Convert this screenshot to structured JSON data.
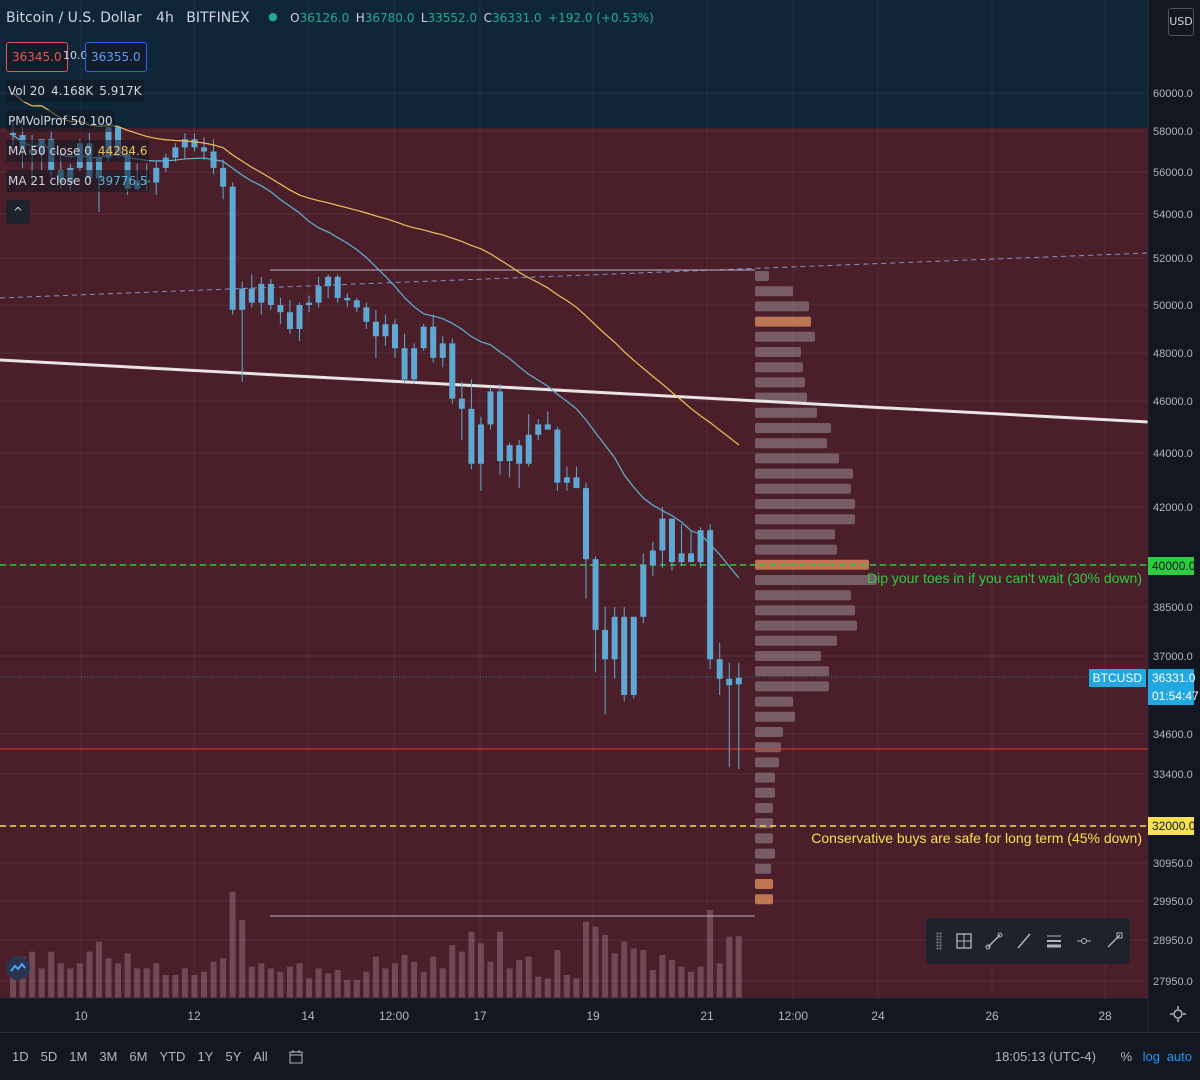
{
  "header": {
    "title": "Bitcoin / U.S. Dollar",
    "interval": "4h",
    "exchange": "BITFINEX",
    "ohlc": [
      {
        "label": "O",
        "value": "36126.0"
      },
      {
        "label": "H",
        "value": "36780.0"
      },
      {
        "label": "L",
        "value": "33552.0"
      },
      {
        "label": "C",
        "value": "36331.0"
      }
    ],
    "change": "+192.0 (+0.53%)",
    "bid": "36345.0",
    "spread": "10.0",
    "ask": "36355.0"
  },
  "indicators": [
    {
      "name": "Vol 20",
      "v1": "4.168K",
      "v2": "5.917K",
      "color1": "#d1d4dc",
      "color2": "#d1d4dc"
    },
    {
      "name": "PMVolProf 50 100",
      "v1": "",
      "v2": "",
      "color1": "#d1d4dc",
      "color2": "#d1d4dc"
    },
    {
      "name": "MA 50 close 0",
      "v1": "44284.6",
      "v2": "",
      "color1": "#f0c05a",
      "color2": "#d1d4dc"
    },
    {
      "name": "MA 21 close 0",
      "v1": "39776.5",
      "v2": "",
      "color1": "#5fb3d3",
      "color2": "#d1d4dc"
    }
  ],
  "price_axis": {
    "currency": "USD",
    "ticks": [
      "60000.0",
      "58000.0",
      "56000.0",
      "54000.0",
      "52000.0",
      "50000.0",
      "48000.0",
      "46000.0",
      "44000.0",
      "42000.0",
      "40000.0",
      "38500.0",
      "37000.0",
      "34600.0",
      "33400.0",
      "32000.0",
      "30950.0",
      "29950.0",
      "28950.0",
      "27950.0"
    ],
    "marker_40000": "40000.0",
    "marker_32000": "32000.0",
    "last_symbol": "BTCUSD",
    "last_price": "36331.0",
    "countdown": "01:54:47"
  },
  "time_axis": {
    "ticks": [
      "10",
      "12",
      "14",
      "12:00",
      "17",
      "19",
      "21",
      "12:00",
      "24",
      "26",
      "28"
    ]
  },
  "annotations": {
    "green_note": "Dip your toes in if you can't wait (30% down)",
    "yellow_note": "Conservative buys are safe for long term (45% down)"
  },
  "bottom_bar": {
    "ranges": [
      "1D",
      "5D",
      "1M",
      "3M",
      "6M",
      "YTD",
      "1Y",
      "5Y",
      "All"
    ],
    "time": "18:05:13 (UTC-4)",
    "percent": "%",
    "log": "log",
    "auto": "auto"
  },
  "colors": {
    "up": "#26a69a",
    "candle": "#5fa8d3",
    "zone": "#4a1f2a",
    "zone_top": "#0f2638",
    "ma50": "#f0c05a",
    "ma21": "#5fb3d3",
    "green_line": "#2ecc40",
    "yellow_line": "#f5e050",
    "red_line": "#e53935",
    "vp": "#9e8e96",
    "vp_poc": "#d2855a"
  },
  "chart_data": {
    "type": "candlestick",
    "symbol": "BTCUSD",
    "interval": "4h",
    "candles_ohlc": [
      [
        57900,
        58600,
        57300,
        57800
      ],
      [
        57800,
        58200,
        56200,
        57100
      ],
      [
        57100,
        57800,
        55500,
        56900
      ],
      [
        56900,
        57400,
        56100,
        57600
      ],
      [
        57600,
        58000,
        55700,
        56100
      ],
      [
        56100,
        56800,
        55200,
        55500
      ],
      [
        55500,
        56400,
        55100,
        56200
      ],
      [
        56200,
        57600,
        56000,
        57400
      ],
      [
        57400,
        57900,
        55600,
        55700
      ],
      [
        55700,
        57000,
        54100,
        56700
      ],
      [
        56700,
        58400,
        56500,
        58200
      ],
      [
        58200,
        58300,
        56700,
        56900
      ],
      [
        56900,
        57100,
        54900,
        55200
      ],
      [
        55200,
        56400,
        55100,
        55600
      ],
      [
        55600,
        56400,
        55100,
        55500
      ],
      [
        55500,
        56500,
        54900,
        56200
      ],
      [
        56200,
        56900,
        56000,
        56700
      ],
      [
        56700,
        57400,
        56500,
        57200
      ],
      [
        57200,
        57900,
        56600,
        57600
      ],
      [
        57600,
        57900,
        57000,
        57200
      ],
      [
        57200,
        57700,
        56600,
        57000
      ],
      [
        57000,
        57600,
        55900,
        56200
      ],
      [
        56200,
        56600,
        54700,
        55300
      ],
      [
        55300,
        55500,
        49600,
        49800
      ],
      [
        49800,
        51000,
        46800,
        50700
      ],
      [
        50700,
        51300,
        49900,
        50100
      ],
      [
        50100,
        51200,
        49600,
        50900
      ],
      [
        50900,
        51100,
        49800,
        50000
      ],
      [
        50000,
        50300,
        49200,
        49700
      ],
      [
        49700,
        50200,
        48800,
        49000
      ],
      [
        49000,
        50100,
        48500,
        50000
      ],
      [
        50000,
        50400,
        49700,
        50100
      ],
      [
        50100,
        51200,
        49900,
        50800
      ],
      [
        50800,
        51300,
        50300,
        51200
      ],
      [
        51200,
        51300,
        50100,
        50300
      ],
      [
        50300,
        50500,
        49900,
        50200
      ],
      [
        50200,
        50300,
        49700,
        49900
      ],
      [
        49900,
        50100,
        49000,
        49300
      ],
      [
        49300,
        49800,
        47800,
        48700
      ],
      [
        48700,
        49600,
        48300,
        49200
      ],
      [
        49200,
        49400,
        47800,
        48200
      ],
      [
        48200,
        48800,
        46700,
        46900
      ],
      [
        46900,
        48400,
        46700,
        48200
      ],
      [
        48200,
        49200,
        48100,
        49100
      ],
      [
        49100,
        49600,
        47600,
        47800
      ],
      [
        47800,
        48700,
        47400,
        48400
      ],
      [
        48400,
        48600,
        45900,
        46100
      ],
      [
        46100,
        46800,
        44500,
        45700
      ],
      [
        45700,
        46900,
        43400,
        43600
      ],
      [
        43600,
        45400,
        42600,
        45100
      ],
      [
        45100,
        46600,
        44900,
        46400
      ],
      [
        46400,
        46700,
        43200,
        43700
      ],
      [
        43700,
        44400,
        43100,
        44300
      ],
      [
        44300,
        44500,
        42700,
        43600
      ],
      [
        43600,
        45500,
        43500,
        44700
      ],
      [
        44700,
        45300,
        44500,
        45100
      ],
      [
        45100,
        45600,
        44900,
        44900
      ],
      [
        44900,
        45000,
        42600,
        42900
      ],
      [
        42900,
        43500,
        42600,
        43100
      ],
      [
        43100,
        43500,
        42800,
        42700
      ],
      [
        42700,
        42900,
        38800,
        40200
      ],
      [
        40200,
        40300,
        36500,
        37800
      ],
      [
        37800,
        38500,
        35200,
        36900
      ],
      [
        36900,
        38500,
        36300,
        38200
      ],
      [
        38200,
        38500,
        35600,
        35800
      ],
      [
        35800,
        38200,
        35700,
        38200
      ],
      [
        38200,
        40400,
        38000,
        40000
      ],
      [
        40000,
        40800,
        39600,
        40500
      ],
      [
        40500,
        42000,
        39900,
        41600
      ],
      [
        41600,
        41600,
        39800,
        40100
      ],
      [
        40100,
        41400,
        40000,
        40400
      ],
      [
        40400,
        41200,
        40100,
        40100
      ],
      [
        40100,
        41300,
        39900,
        41200
      ],
      [
        41200,
        41400,
        36600,
        36900
      ],
      [
        36900,
        37400,
        35800,
        36300
      ],
      [
        36300,
        36800,
        33600,
        36100
      ],
      [
        36126,
        36780,
        33552,
        36331
      ]
    ],
    "volume_ratio_last": 4.168,
    "moving_averages": [
      {
        "name": "MA 50 close 0",
        "last": 44284.6
      },
      {
        "name": "MA 21 close 0",
        "last": 39776.5
      }
    ],
    "levels": [
      {
        "price": 40000,
        "label": "Dip your toes in if you can't wait (30% down)"
      },
      {
        "price": 32000,
        "label": "Conservative buys are safe for long term (45% down)"
      },
      {
        "price": 35000,
        "label": ""
      }
    ],
    "xlabel": "",
    "ylabel": ""
  }
}
